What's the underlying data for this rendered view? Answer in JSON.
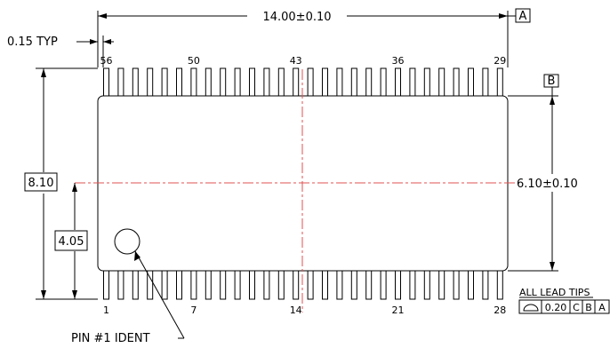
{
  "dims": {
    "length": "14.00±0.10",
    "lead_width": "0.15 TYP",
    "body_width": "6.10±0.10",
    "overall_width": "8.10",
    "half_width": "4.05"
  },
  "datums": {
    "a": "A",
    "b": "B",
    "c": "C"
  },
  "pins": {
    "top_labels": [
      "56",
      "50",
      "43",
      "36",
      "29"
    ],
    "bottom_labels": [
      "1",
      "7",
      "14",
      "21",
      "28"
    ]
  },
  "pin1_ident": "PIN #1 IDENT",
  "tolerance": {
    "title": "ALL LEAD TIPS",
    "value": "0.20",
    "refs": [
      "C",
      "B",
      "A"
    ]
  }
}
